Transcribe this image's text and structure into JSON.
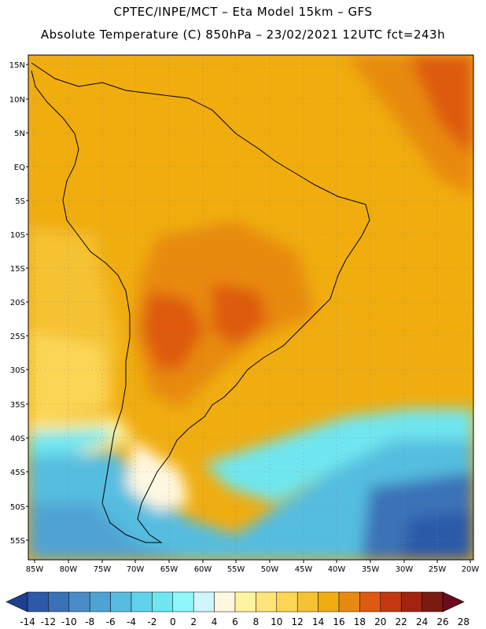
{
  "header": {
    "line1": "CPTEC/INPE/MCT –  Eta Model 15km – GFS",
    "line2": "Absolute Temperature (C) 850hPa – 23/02/2021 12UTC fct=243h"
  },
  "map": {
    "lat_labels": [
      "15N",
      "10N",
      "5N",
      "EQ",
      "5S",
      "10S",
      "15S",
      "20S",
      "25S",
      "30S",
      "35S",
      "40S",
      "45S",
      "50S",
      "55S"
    ],
    "lon_labels": [
      "85W",
      "80W",
      "75W",
      "70W",
      "65W",
      "60W",
      "55W",
      "50W",
      "45W",
      "40W",
      "35W",
      "30W",
      "25W",
      "20W"
    ]
  },
  "colorbar": {
    "ticks": [
      "-14",
      "-12",
      "-10",
      "-8",
      "-6",
      "-4",
      "-2",
      "0",
      "2",
      "4",
      "6",
      "8",
      "10",
      "12",
      "14",
      "16",
      "18",
      "20",
      "22",
      "24",
      "26",
      "28"
    ],
    "colors": [
      "#1f3f8f",
      "#2c5aa8",
      "#3a72b8",
      "#4a8cc8",
      "#4fa3d4",
      "#55bde0",
      "#5fd3ea",
      "#6fe6f0",
      "#8ff6fa",
      "#d0f6fb",
      "#fff8e0",
      "#fff3a0",
      "#fde57a",
      "#fbd654",
      "#f5c232",
      "#f0ad10",
      "#e88a10",
      "#de5a10",
      "#c43810",
      "#a22410",
      "#7a1a10",
      "#6a0a1c"
    ]
  }
}
